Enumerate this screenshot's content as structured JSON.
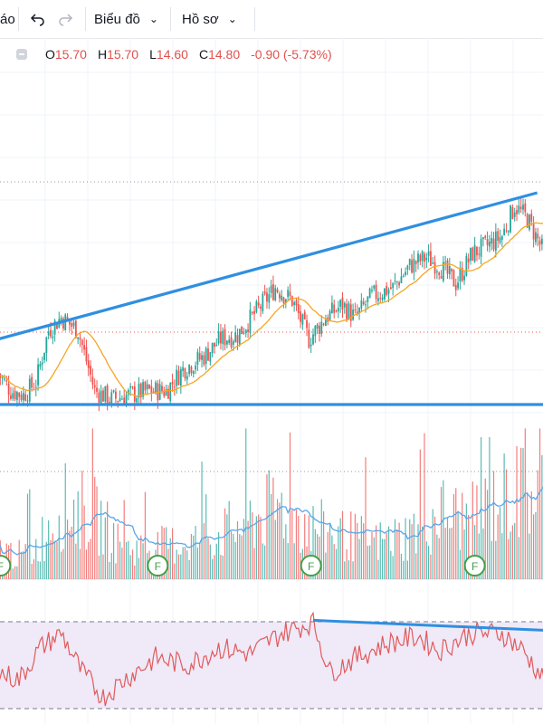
{
  "toolbar": {
    "cut_label": "áo",
    "undo_icon": "undo-icon",
    "redo_icon": "redo-icon",
    "chart_menu": "Biểu đồ",
    "profile_menu": "Hồ sơ"
  },
  "legend": {
    "o_label": "O",
    "o_value": "15.70",
    "h_label": "H",
    "h_value": "15.70",
    "l_label": "L",
    "l_value": "14.60",
    "c_label": "C",
    "c_value": "14.80",
    "change": "-0.90 (-5.73%)"
  },
  "colors": {
    "up": "#26a69a",
    "down": "#ef5350",
    "trendline": "#2f8fe0",
    "ma": "#f5a623",
    "volume_ma": "#5aa6e8",
    "rsi_line": "#e05b5b",
    "rsi_band": "#efe9f8"
  },
  "markers": {
    "label": "F",
    "count": 4
  },
  "chart_data": {
    "type": "candlestick",
    "price_anchors": [
      [
        0,
        12.4
      ],
      [
        6,
        12.0
      ],
      [
        12,
        11.9
      ],
      [
        18,
        12.2
      ],
      [
        24,
        13.4
      ],
      [
        30,
        13.7
      ],
      [
        38,
        13.4
      ],
      [
        46,
        12.0
      ],
      [
        54,
        11.8
      ],
      [
        62,
        11.9
      ],
      [
        72,
        12.0
      ],
      [
        80,
        12.0
      ],
      [
        88,
        12.5
      ],
      [
        98,
        12.8
      ],
      [
        106,
        13.2
      ],
      [
        114,
        13.3
      ],
      [
        124,
        13.9
      ],
      [
        132,
        14.4
      ],
      [
        140,
        14.1
      ],
      [
        148,
        13.2
      ],
      [
        156,
        13.7
      ],
      [
        164,
        14.0
      ],
      [
        170,
        13.7
      ],
      [
        178,
        14.2
      ],
      [
        188,
        14.4
      ],
      [
        196,
        14.9
      ],
      [
        204,
        15.1
      ],
      [
        210,
        14.9
      ],
      [
        218,
        14.5
      ],
      [
        226,
        15.2
      ],
      [
        234,
        15.4
      ],
      [
        240,
        15.6
      ],
      [
        246,
        16.3
      ],
      [
        252,
        16.0
      ],
      [
        260,
        15.2
      ]
    ],
    "volume_anchors": [
      [
        0,
        0.2
      ],
      [
        15,
        0.15
      ],
      [
        30,
        0.5
      ],
      [
        45,
        0.45
      ],
      [
        60,
        0.2
      ],
      [
        75,
        0.22
      ],
      [
        90,
        0.25
      ],
      [
        105,
        0.3
      ],
      [
        120,
        0.4
      ],
      [
        135,
        0.5
      ],
      [
        150,
        0.35
      ],
      [
        165,
        0.3
      ],
      [
        180,
        0.25
      ],
      [
        195,
        0.3
      ],
      [
        210,
        0.45
      ],
      [
        225,
        0.4
      ],
      [
        240,
        0.55
      ],
      [
        255,
        0.6
      ]
    ],
    "rsi_anchors": [
      [
        0,
        45
      ],
      [
        10,
        40
      ],
      [
        20,
        62
      ],
      [
        30,
        72
      ],
      [
        40,
        45
      ],
      [
        50,
        28
      ],
      [
        60,
        40
      ],
      [
        75,
        55
      ],
      [
        90,
        50
      ],
      [
        105,
        62
      ],
      [
        120,
        58
      ],
      [
        135,
        72
      ],
      [
        150,
        80
      ],
      [
        158,
        45
      ],
      [
        170,
        55
      ],
      [
        185,
        65
      ],
      [
        200,
        70
      ],
      [
        210,
        60
      ],
      [
        225,
        72
      ],
      [
        240,
        72
      ],
      [
        250,
        60
      ],
      [
        260,
        40
      ]
    ],
    "trendlines": [
      {
        "name": "upper",
        "from": [
          0,
          13.2
        ],
        "to": [
          255,
          16.6
        ]
      },
      {
        "name": "lower",
        "from": [
          0,
          11.68
        ],
        "to": [
          260,
          11.68
        ]
      },
      {
        "name": "rsi-divergence",
        "from": [
          150,
          81
        ],
        "to": [
          260,
          74
        ]
      }
    ]
  }
}
